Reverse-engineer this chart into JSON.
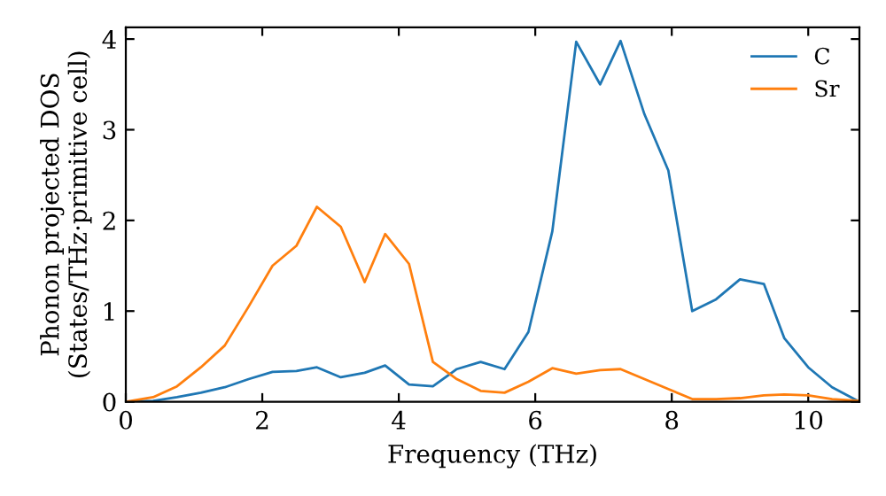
{
  "chart_data": {
    "type": "line",
    "xlabel": "Frequency (THz)",
    "ylabel": "Phonon projected DOS\n(States/THz·primitive cell)",
    "x": [
      0,
      0.4,
      0.75,
      1.1,
      1.45,
      1.8,
      2.15,
      2.5,
      2.8,
      3.15,
      3.5,
      3.8,
      4.15,
      4.5,
      4.85,
      5.2,
      5.55,
      5.9,
      6.25,
      6.6,
      6.95,
      7.25,
      7.6,
      7.95,
      8.3,
      8.65,
      9.0,
      9.35,
      9.65,
      10.0,
      10.35,
      10.75
    ],
    "series": [
      {
        "name": "C",
        "color": "#1f77b4",
        "values": [
          0,
          0.01,
          0.05,
          0.1,
          0.16,
          0.25,
          0.33,
          0.34,
          0.38,
          0.27,
          0.32,
          0.4,
          0.19,
          0.17,
          0.36,
          0.44,
          0.36,
          0.77,
          1.88,
          3.97,
          3.5,
          3.98,
          3.17,
          2.55,
          1.0,
          1.13,
          1.35,
          1.3,
          0.7,
          0.38,
          0.16,
          0.0
        ]
      },
      {
        "name": "Sr",
        "color": "#ff7f0e",
        "values": [
          0,
          0.05,
          0.17,
          0.38,
          0.62,
          1.05,
          1.5,
          1.72,
          2.15,
          1.93,
          1.32,
          1.85,
          1.52,
          0.44,
          0.25,
          0.12,
          0.1,
          0.22,
          0.37,
          0.31,
          0.35,
          0.36,
          0.25,
          0.14,
          0.03,
          0.03,
          0.04,
          0.07,
          0.08,
          0.07,
          0.03,
          0.01
        ]
      }
    ],
    "xlim": [
      0,
      10.75
    ],
    "ylim": [
      0,
      4.13
    ],
    "xticks": [
      0,
      2,
      4,
      6,
      8,
      10
    ],
    "yticks": [
      0,
      1,
      2,
      3,
      4
    ],
    "legend": "top right",
    "grid": false
  }
}
